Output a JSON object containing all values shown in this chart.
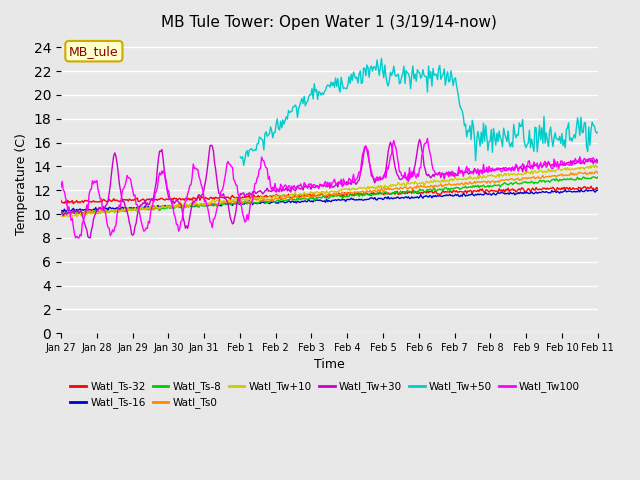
{
  "title": "MB Tule Tower: Open Water 1 (3/19/14-now)",
  "xlabel": "Time",
  "ylabel": "Temperature (C)",
  "ylim": [
    0,
    25
  ],
  "yticks": [
    0,
    2,
    4,
    6,
    8,
    10,
    12,
    14,
    16,
    18,
    20,
    22,
    24
  ],
  "background_color": "#e8e8e8",
  "series_colors": {
    "Watl_Ts-32": "#ff0000",
    "Watl_Ts-16": "#0000cc",
    "Watl_Ts-8": "#00cc00",
    "Watl_Ts0": "#ff8800",
    "Watl_Tw+10": "#cccc00",
    "Watl_Tw+30": "#cc00cc",
    "Watl_Tw+50": "#00cccc",
    "Watl_Tw100": "#ff00ff"
  },
  "date_labels": [
    "Jan 27",
    "Jan 28",
    "Jan 29",
    "Jan 30",
    "Jan 31",
    "Feb 1",
    "Feb 2",
    "Feb 3",
    "Feb 4",
    "Feb 5",
    "Feb 6",
    "Feb 7",
    "Feb 8",
    "Feb 9",
    "Feb 10",
    "Feb 11"
  ],
  "annotation_label": "MB_tule"
}
